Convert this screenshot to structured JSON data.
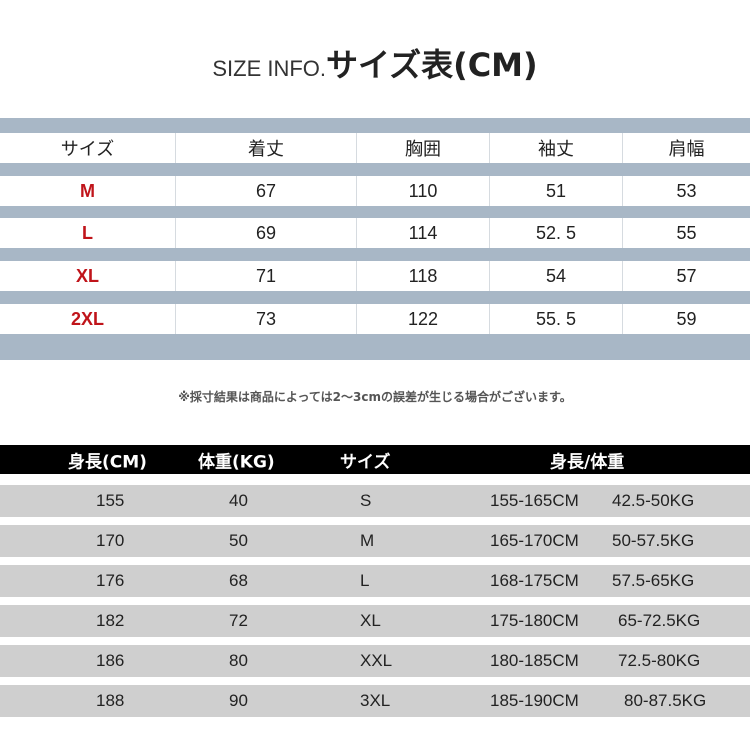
{
  "title": {
    "en": "SIZE INFO.",
    "jp": "サイズ表(CM)"
  },
  "size_table": {
    "headers": [
      "サイズ",
      "着丈",
      "胸囲",
      "袖丈",
      "肩幅"
    ],
    "rows": [
      [
        "M",
        "67",
        "110",
        "51",
        "53"
      ],
      [
        "L",
        "69",
        "114",
        "52. 5",
        "55"
      ],
      [
        "XL",
        "71",
        "118",
        "54",
        "57"
      ],
      [
        "2XL",
        "73",
        "122",
        "55. 5",
        "59"
      ]
    ],
    "size_color": "#c0141a",
    "band_color": "#a8b7c6"
  },
  "note": "※採寸結果は商品によっては2～3cmの誤差が生じる場合がございます。",
  "guide_table": {
    "headers": [
      "身長(CM)",
      "体重(KG)",
      "サイズ",
      "身長/体重"
    ],
    "rows": [
      [
        "155",
        "40",
        "S",
        "155-165CM",
        "42.5-50KG"
      ],
      [
        "170",
        "50",
        "M",
        "165-170CM",
        "50-57.5KG"
      ],
      [
        "176",
        "68",
        "L",
        "168-175CM",
        "57.5-65KG"
      ],
      [
        "182",
        "72",
        "XL",
        "175-180CM",
        "65-72.5KG"
      ],
      [
        "186",
        "80",
        "XXL",
        "180-185CM",
        "72.5-80KG"
      ],
      [
        "188",
        "90",
        "3XL",
        "185-190CM",
        "80-87.5KG"
      ]
    ]
  }
}
